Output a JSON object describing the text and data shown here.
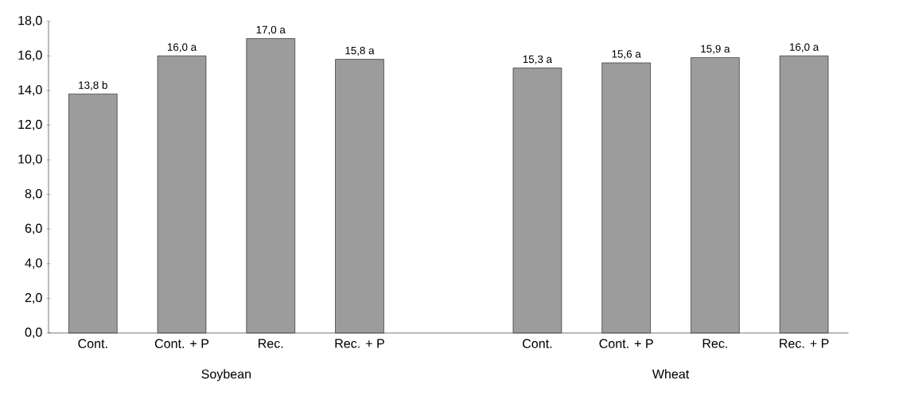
{
  "chart_data": {
    "type": "bar",
    "categories": [
      "Cont.",
      "Cont. + P",
      "Rec.",
      "Rec. + P",
      null,
      "Cont.",
      "Cont. + P",
      "Rec.",
      "Rec. + P"
    ],
    "values": [
      13.8,
      16.0,
      17.0,
      15.8,
      null,
      15.3,
      15.6,
      15.9,
      16.0
    ],
    "value_labels": [
      "13,8 b",
      "16,0 a",
      "17,0 a",
      "15,8 a",
      null,
      "15,3 a",
      "15,6 a",
      "15,9 a",
      "16,0 a"
    ],
    "color": "#9c9c9c",
    "ylim": [
      0,
      18
    ],
    "yticks": [
      {
        "value": 0,
        "label": "0,0"
      },
      {
        "value": 2,
        "label": "2,0"
      },
      {
        "value": 4,
        "label": "4,0"
      },
      {
        "value": 6,
        "label": "6,0"
      },
      {
        "value": 8,
        "label": "8,0"
      },
      {
        "value": 10,
        "label": "10,0"
      },
      {
        "value": 12,
        "label": "12,0"
      },
      {
        "value": 14,
        "label": "14,0"
      },
      {
        "value": 16,
        "label": "16,0"
      },
      {
        "value": 18,
        "label": "18,0"
      }
    ],
    "annotations": [
      "Soybean",
      "Wheat"
    ],
    "grid": false
  }
}
